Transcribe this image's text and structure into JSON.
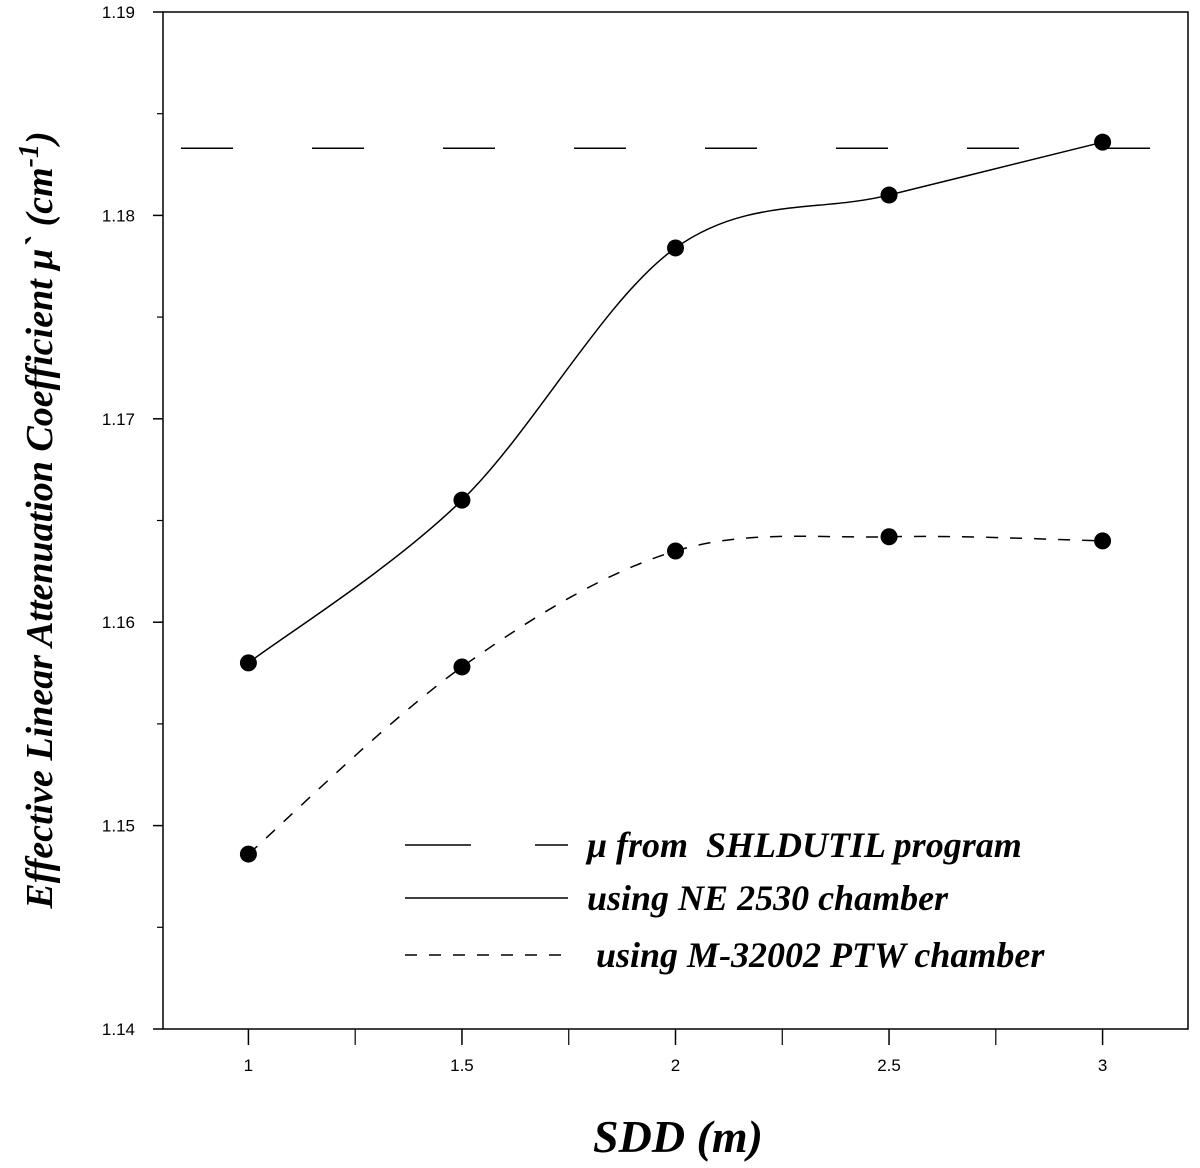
{
  "chart_data": {
    "type": "line",
    "xlabel": "SDD (m)",
    "ylabel": "Effective Linear Attenuation Coefficient μ` (cm",
    "ylabel_sup": "-1",
    "ylabel_close": ")",
    "xlim": [
      0.8,
      3.2
    ],
    "ylim": [
      1.14,
      1.19
    ],
    "x_ticks": [
      1,
      1.5,
      2,
      2.5,
      3
    ],
    "x_tick_labels": [
      "1",
      "1.5",
      "2",
      "2.5",
      "3"
    ],
    "x_minor_ticks": [
      1.25,
      1.75,
      2.25,
      2.75
    ],
    "y_ticks": [
      1.14,
      1.15,
      1.16,
      1.17,
      1.18,
      1.19
    ],
    "y_tick_labels": [
      "1.14",
      "1.15",
      "1.16",
      "1.17",
      "1.18",
      "1.19"
    ],
    "y_minor_ticks": [
      1.145,
      1.155,
      1.165,
      1.175,
      1.185
    ],
    "legend_position": "bottom-right",
    "series": [
      {
        "name": "μ from  SHLDUTIL program",
        "style": "long-dash",
        "markers": false,
        "x": [
          0.8,
          3.2
        ],
        "y": [
          1.1833,
          1.1833
        ]
      },
      {
        "name": "using NE 2530 chamber",
        "style": "solid",
        "markers": true,
        "x": [
          1,
          1.5,
          2,
          2.5,
          3
        ],
        "y": [
          1.158,
          1.166,
          1.1784,
          1.181,
          1.1836
        ]
      },
      {
        "name": " using M-32002 PTW chamber",
        "style": "short-dash",
        "markers": true,
        "x": [
          1,
          1.5,
          2,
          2.5,
          3
        ],
        "y": [
          1.1486,
          1.1578,
          1.1635,
          1.1642,
          1.164
        ]
      }
    ]
  }
}
